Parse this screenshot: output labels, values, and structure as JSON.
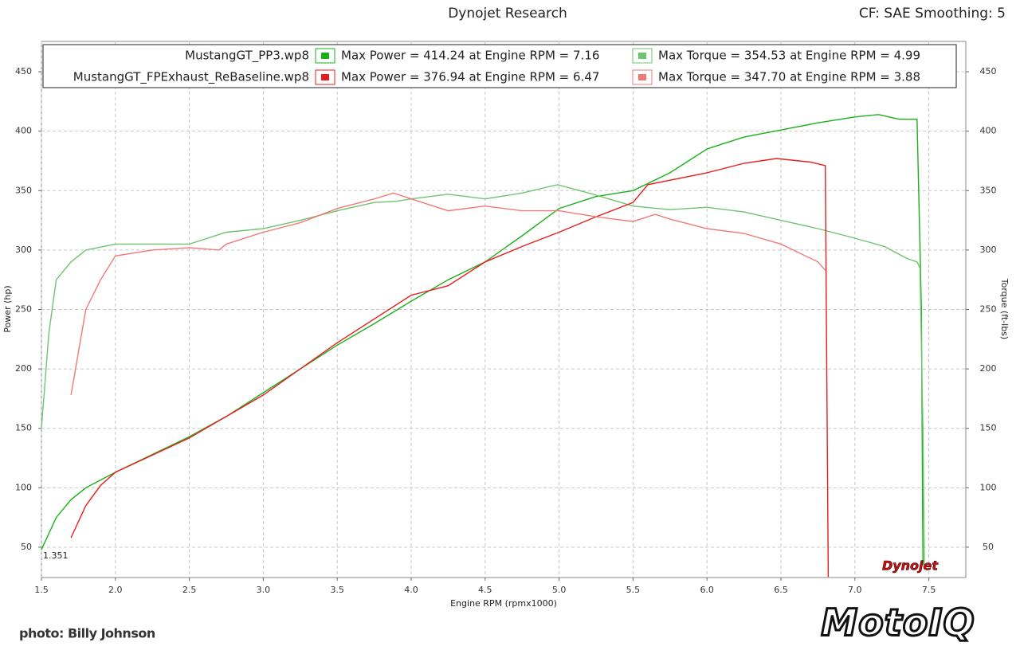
{
  "chart_data": {
    "type": "line",
    "title": "Dynojet Research",
    "subtitle": "CF: SAE Smoothing: 5",
    "x_label": "Engine RPM (rpmx1000)",
    "y_label": "Power (hp)",
    "y2_label": "Torque (ft-lbs)",
    "xlim": [
      1.5,
      7.75
    ],
    "ylim": [
      24.5,
      475.5
    ],
    "y2lim": [
      24.5,
      475.5
    ],
    "xticks": [
      1.5,
      {
        "value": 2,
        "label": "2.0"
      },
      2.5,
      {
        "value": 3,
        "label": "3.0"
      },
      3.5,
      {
        "value": 4,
        "label": "4.0"
      },
      4.5,
      {
        "value": 5,
        "label": "5.0"
      },
      5.5,
      {
        "value": 6,
        "label": "6.0"
      },
      6.5,
      {
        "value": 7,
        "label": "7.0"
      },
      7.5
    ],
    "yticks": [
      50,
      100,
      150,
      200,
      250,
      300,
      350,
      400,
      450
    ],
    "y2ticks": [
      50,
      100,
      150,
      200,
      250,
      300,
      350,
      400,
      450
    ],
    "grid": true,
    "files": [
      "MustangGT_PP3.wp8",
      "MustangGT_FPExhaust_ReBaseline.wp8"
    ],
    "series": [
      {
        "name": "Max Power = 414.24 at Engine RPM = 7.16",
        "color": "#19b119",
        "x": [
          1.5,
          1.6,
          1.7,
          1.8,
          2.0,
          2.2,
          2.5,
          2.75,
          3.0,
          3.25,
          3.5,
          3.75,
          4.0,
          4.25,
          4.5,
          4.75,
          5.0,
          5.25,
          5.5,
          5.75,
          6.0,
          6.25,
          6.5,
          6.75,
          7.0,
          7.16,
          7.3,
          7.42,
          7.45,
          7.46
        ],
        "values": [
          48,
          75,
          90,
          100,
          113,
          125,
          143,
          160,
          180,
          200,
          220,
          238,
          257,
          275,
          290,
          312,
          335,
          345,
          350,
          365,
          385,
          395,
          401,
          407,
          412,
          414,
          410,
          410,
          250,
          35
        ]
      },
      {
        "name": "Max Torque = 354.53 at Engine RPM = 4.99",
        "color": "#6fc46f",
        "axis": "y2",
        "x": [
          1.5,
          1.55,
          1.6,
          1.7,
          1.8,
          2.0,
          2.25,
          2.5,
          2.75,
          3.0,
          3.25,
          3.5,
          3.75,
          3.9,
          4.0,
          4.25,
          4.5,
          4.75,
          4.99,
          5.2,
          5.5,
          5.75,
          6.0,
          6.25,
          6.5,
          6.75,
          7.0,
          7.2,
          7.35,
          7.42,
          7.44,
          7.46,
          7.47
        ],
        "values": [
          150,
          230,
          275,
          290,
          300,
          305,
          305,
          305,
          315,
          318,
          325,
          333,
          340,
          341,
          343,
          347,
          343,
          348,
          355,
          348,
          337,
          334,
          336,
          332,
          325,
          318,
          310,
          303,
          293,
          290,
          285,
          150,
          35
        ]
      },
      {
        "name": "Max Power = 376.94 at Engine RPM = 6.47",
        "color": "#e81c1c",
        "x": [
          1.7,
          1.8,
          1.9,
          2.0,
          2.5,
          3.0,
          3.5,
          4.0,
          4.25,
          4.5,
          4.75,
          5.0,
          5.25,
          5.5,
          5.6,
          6.0,
          6.25,
          6.47,
          6.7,
          6.8,
          6.81,
          6.82
        ],
        "values": [
          58,
          85,
          102,
          113,
          142,
          178,
          222,
          262,
          270,
          290,
          303,
          315,
          328,
          340,
          355,
          365,
          373,
          377,
          374,
          371,
          200,
          25
        ]
      },
      {
        "name": "Max Torque = 347.70 at Engine RPM = 3.88",
        "color": "#f07a7a",
        "axis": "y2",
        "x": [
          1.7,
          1.8,
          1.9,
          2.0,
          2.25,
          2.5,
          2.7,
          2.75,
          3.0,
          3.25,
          3.5,
          3.75,
          3.88,
          4.0,
          4.25,
          4.5,
          4.75,
          5.0,
          5.25,
          5.5,
          5.65,
          5.75,
          6.0,
          6.25,
          6.5,
          6.75,
          6.8
        ],
        "values": [
          178,
          250,
          275,
          295,
          300,
          302,
          300,
          305,
          315,
          323,
          335,
          343,
          348,
          343,
          333,
          337,
          333,
          333,
          328,
          324,
          330,
          326,
          318,
          314,
          305,
          290,
          283
        ]
      }
    ],
    "annotations": [
      "1.351",
      "photo: Billy Johnson",
      "Dynojet",
      "MotoIQ"
    ]
  }
}
